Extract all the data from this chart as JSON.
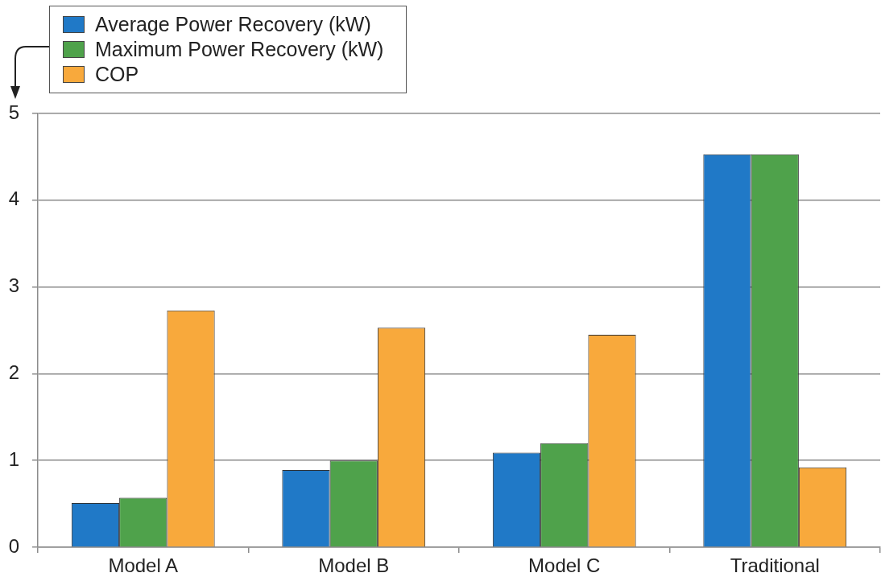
{
  "chart_data": {
    "type": "bar",
    "categories": [
      "Model A",
      "Model B",
      "Model C",
      "Traditional"
    ],
    "series": [
      {
        "name": "Average Power Recovery (kW)",
        "color": "#2079c7",
        "values": [
          0.51,
          0.89,
          1.09,
          4.53
        ]
      },
      {
        "name": "Maximum Power Recovery (kW)",
        "color": "#4fa24b",
        "values": [
          0.57,
          1.0,
          1.2,
          4.53
        ]
      },
      {
        "name": "COP",
        "color": "#f8a93c",
        "values": [
          2.73,
          2.53,
          2.45,
          0.92
        ]
      }
    ],
    "ylim": [
      0,
      5
    ],
    "yticks": [
      0,
      1,
      2,
      3,
      4,
      5
    ],
    "grid": "y",
    "legend": "top left"
  }
}
